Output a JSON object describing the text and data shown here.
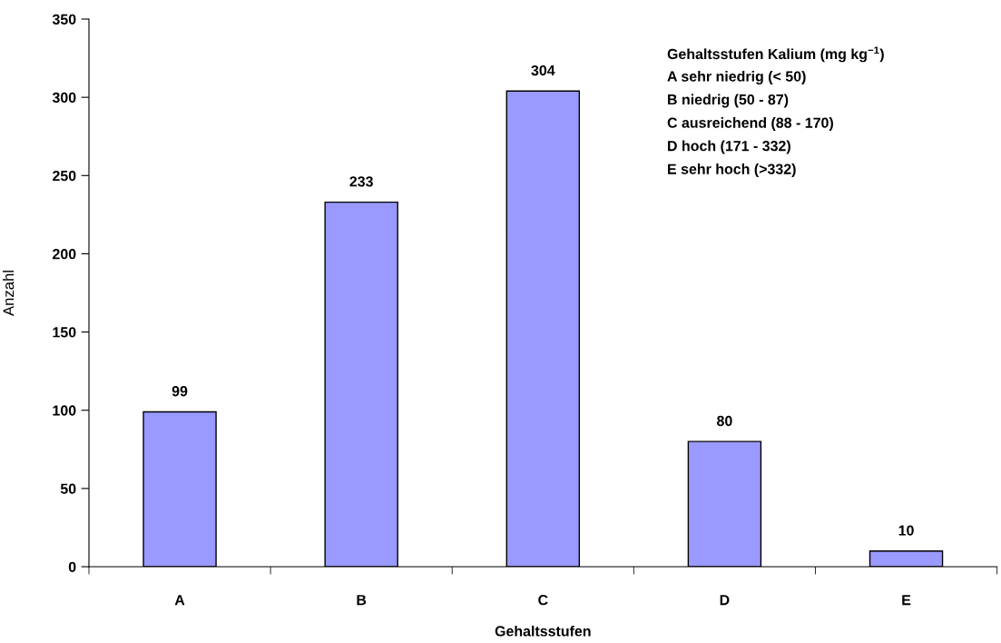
{
  "chart_data": {
    "type": "bar",
    "xlabel": "Gehaltsstufen",
    "ylabel": "Anzahl",
    "categories": [
      "A",
      "B",
      "C",
      "D",
      "E"
    ],
    "values": [
      99,
      233,
      304,
      80,
      10
    ],
    "color": "#9999ff",
    "ylim": [
      0,
      350
    ],
    "yticks": [
      0,
      50,
      100,
      150,
      200,
      250,
      300,
      350
    ],
    "data_labels": true,
    "grid": false,
    "legend": false,
    "annotations": [
      "Gehaltsstufen Kalium (mg kg$^{−1}$)",
      "A sehr niedrig (< 50)",
      "B niedrig (50 - 87)",
      "C ausreichend (88 - 170)",
      "D hoch (171 - 332)",
      "E sehr hoch (>332)"
    ]
  }
}
